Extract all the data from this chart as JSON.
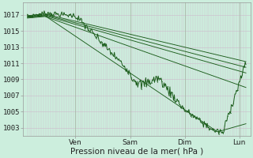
{
  "bg_color": "#cceedd",
  "plot_bg_color": "#cceedd",
  "grid_color_h": "#bbddcc",
  "grid_color_v": "#ddbbcc",
  "line_color": "#1a5c1a",
  "xlabel": "Pression niveau de la mer( hPa )",
  "ylim": [
    1002.0,
    1018.5
  ],
  "yticks": [
    1003,
    1005,
    1007,
    1009,
    1011,
    1013,
    1015,
    1017
  ],
  "xtick_labels": [
    "Ven",
    "Sam",
    "Dim",
    "Lun"
  ],
  "xtick_positions": [
    0.22,
    0.47,
    0.72,
    0.97
  ],
  "label_fontsize": 7.5,
  "tick_fontsize": 6.5
}
